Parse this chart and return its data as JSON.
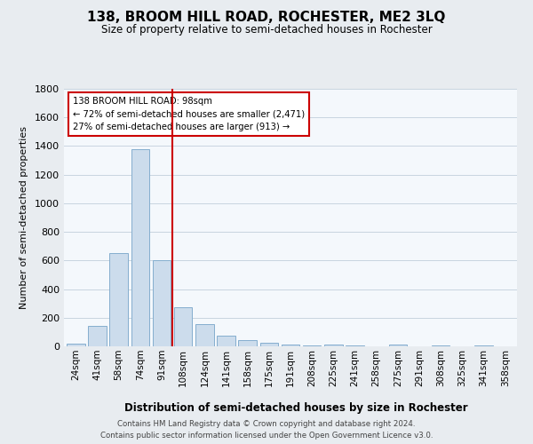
{
  "title": "138, BROOM HILL ROAD, ROCHESTER, ME2 3LQ",
  "subtitle": "Size of property relative to semi-detached houses in Rochester",
  "bar_labels": [
    "24sqm",
    "41sqm",
    "58sqm",
    "74sqm",
    "91sqm",
    "108sqm",
    "124sqm",
    "141sqm",
    "158sqm",
    "175sqm",
    "191sqm",
    "208sqm",
    "225sqm",
    "241sqm",
    "258sqm",
    "275sqm",
    "291sqm",
    "308sqm",
    "325sqm",
    "341sqm",
    "358sqm"
  ],
  "bar_values": [
    20,
    145,
    650,
    1380,
    600,
    275,
    155,
    75,
    45,
    25,
    10,
    5,
    15,
    5,
    0,
    15,
    0,
    5,
    0,
    5,
    0
  ],
  "bar_color": "#ccdcec",
  "bar_edgecolor": "#85aece",
  "vline_x": 4.5,
  "vline_color": "#cc0000",
  "annotation_title": "138 BROOM HILL ROAD: 98sqm",
  "annotation_line1": "← 72% of semi-detached houses are smaller (2,471)",
  "annotation_line2": "27% of semi-detached houses are larger (913) →",
  "annotation_box_edgecolor": "#cc0000",
  "xlabel": "Distribution of semi-detached houses by size in Rochester",
  "ylabel": "Number of semi-detached properties",
  "ylim": [
    0,
    1800
  ],
  "yticks": [
    0,
    200,
    400,
    600,
    800,
    1000,
    1200,
    1400,
    1600,
    1800
  ],
  "footer_line1": "Contains HM Land Registry data © Crown copyright and database right 2024.",
  "footer_line2": "Contains public sector information licensed under the Open Government Licence v3.0.",
  "background_color": "#e8ecf0",
  "plot_background": "#f4f8fc",
  "grid_color": "#c8d4e0"
}
